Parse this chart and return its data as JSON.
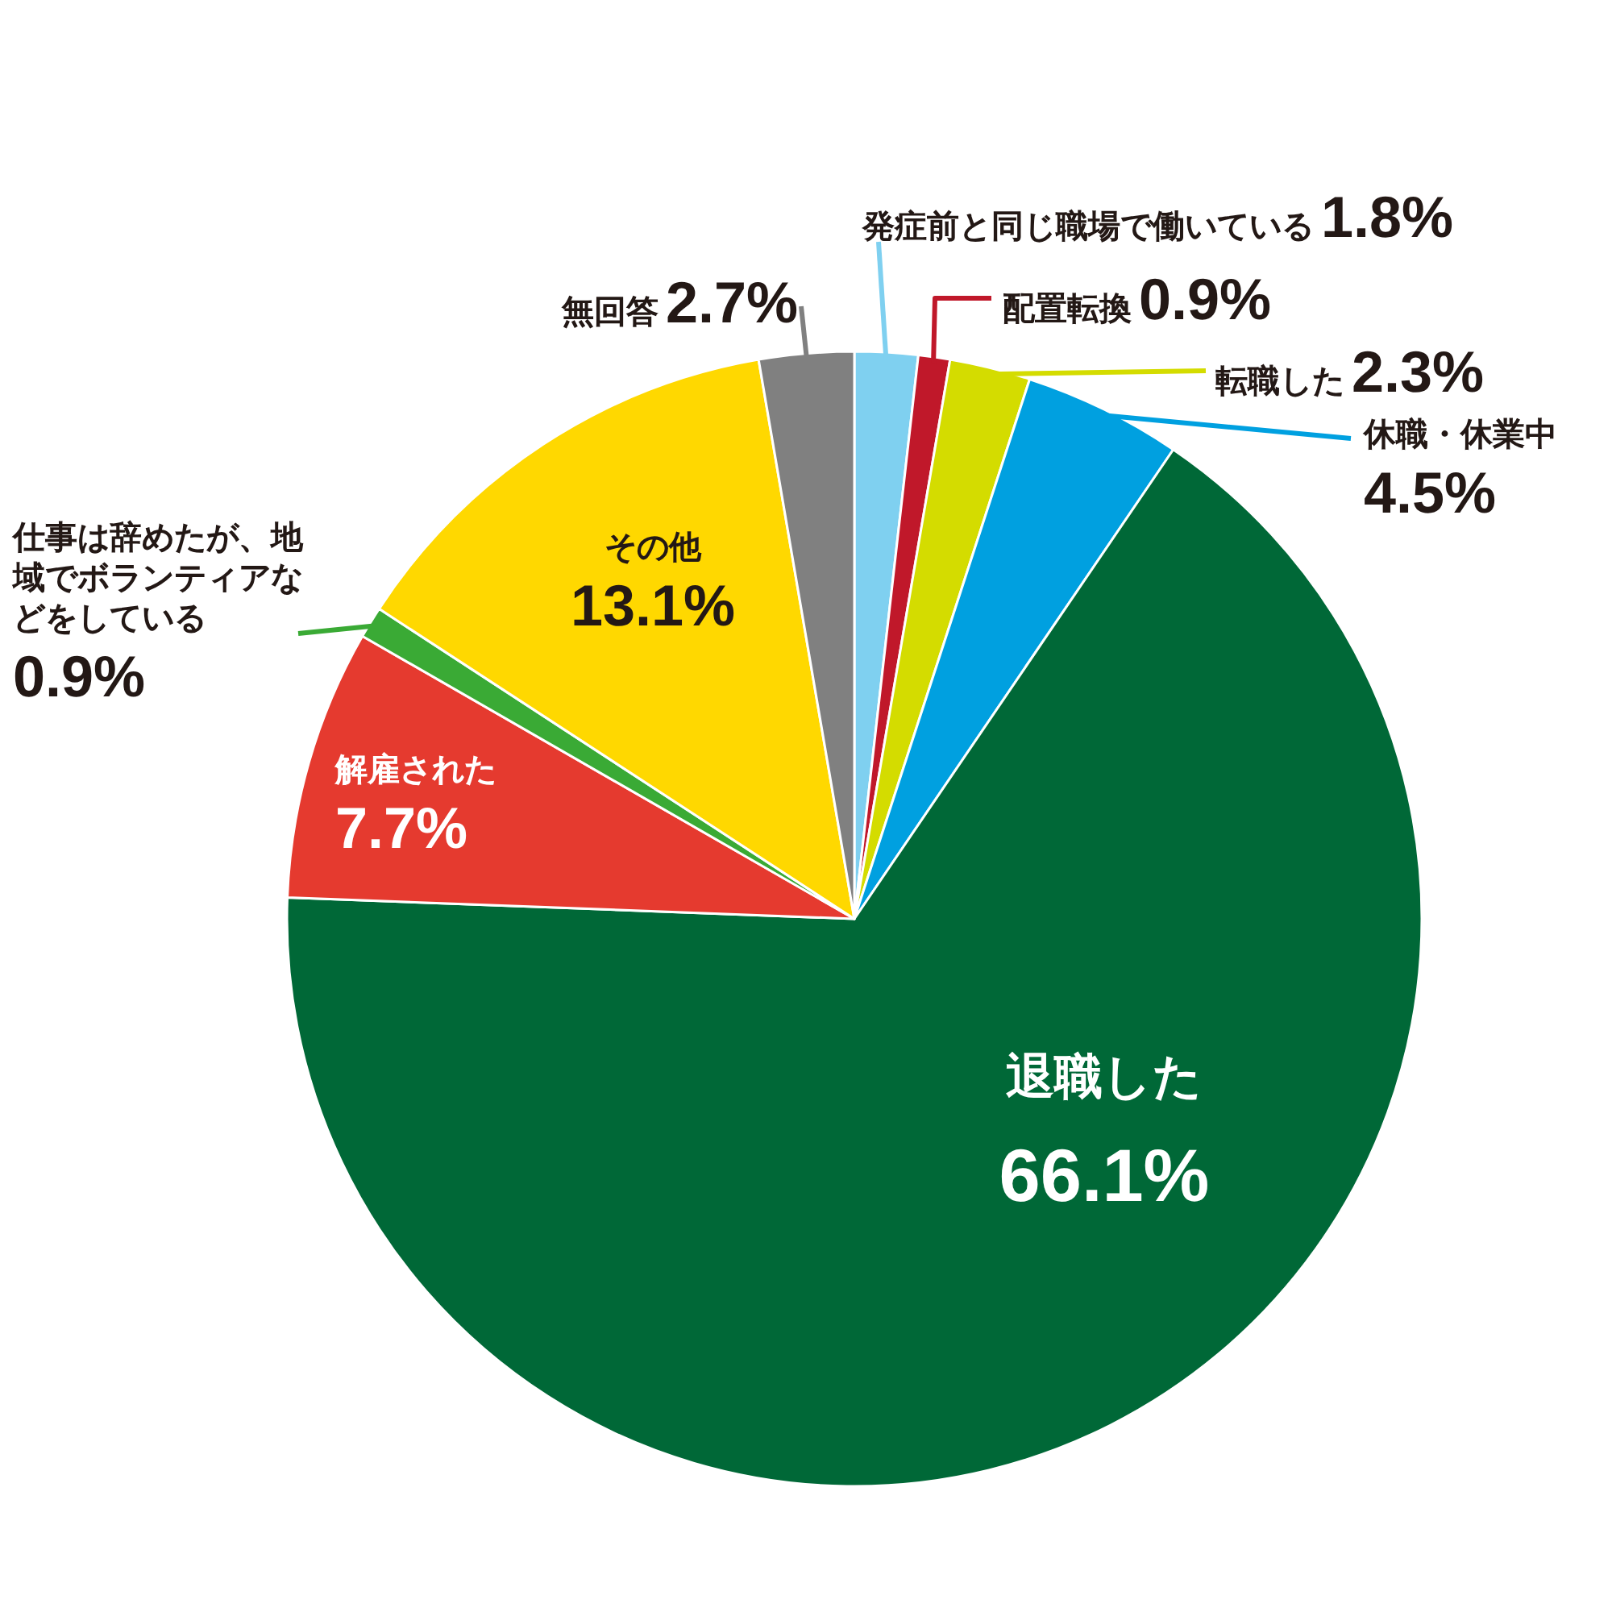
{
  "chart_data": {
    "type": "pie",
    "categories": [
      "発症前と同じ職場で働いている",
      "配置転換",
      "転職した",
      "休職・休業中",
      "退職した",
      "解雇された",
      "仕事は辞めたが、地域でボランティアなどをしている",
      "その他",
      "無回答"
    ],
    "values": [
      1.8,
      0.9,
      2.3,
      4.5,
      66.1,
      7.7,
      0.9,
      13.1,
      2.7
    ],
    "value_labels": [
      "1.8%",
      "0.9%",
      "2.3%",
      "4.5%",
      "66.1%",
      "7.7%",
      "0.9%",
      "13.1%",
      "2.7%"
    ],
    "colors": [
      "#7fd0f0",
      "#c0182a",
      "#d4dc00",
      "#00a0e0",
      "#006837",
      "#e53a2f",
      "#3aaa35",
      "#ffd800",
      "#808080"
    ]
  }
}
